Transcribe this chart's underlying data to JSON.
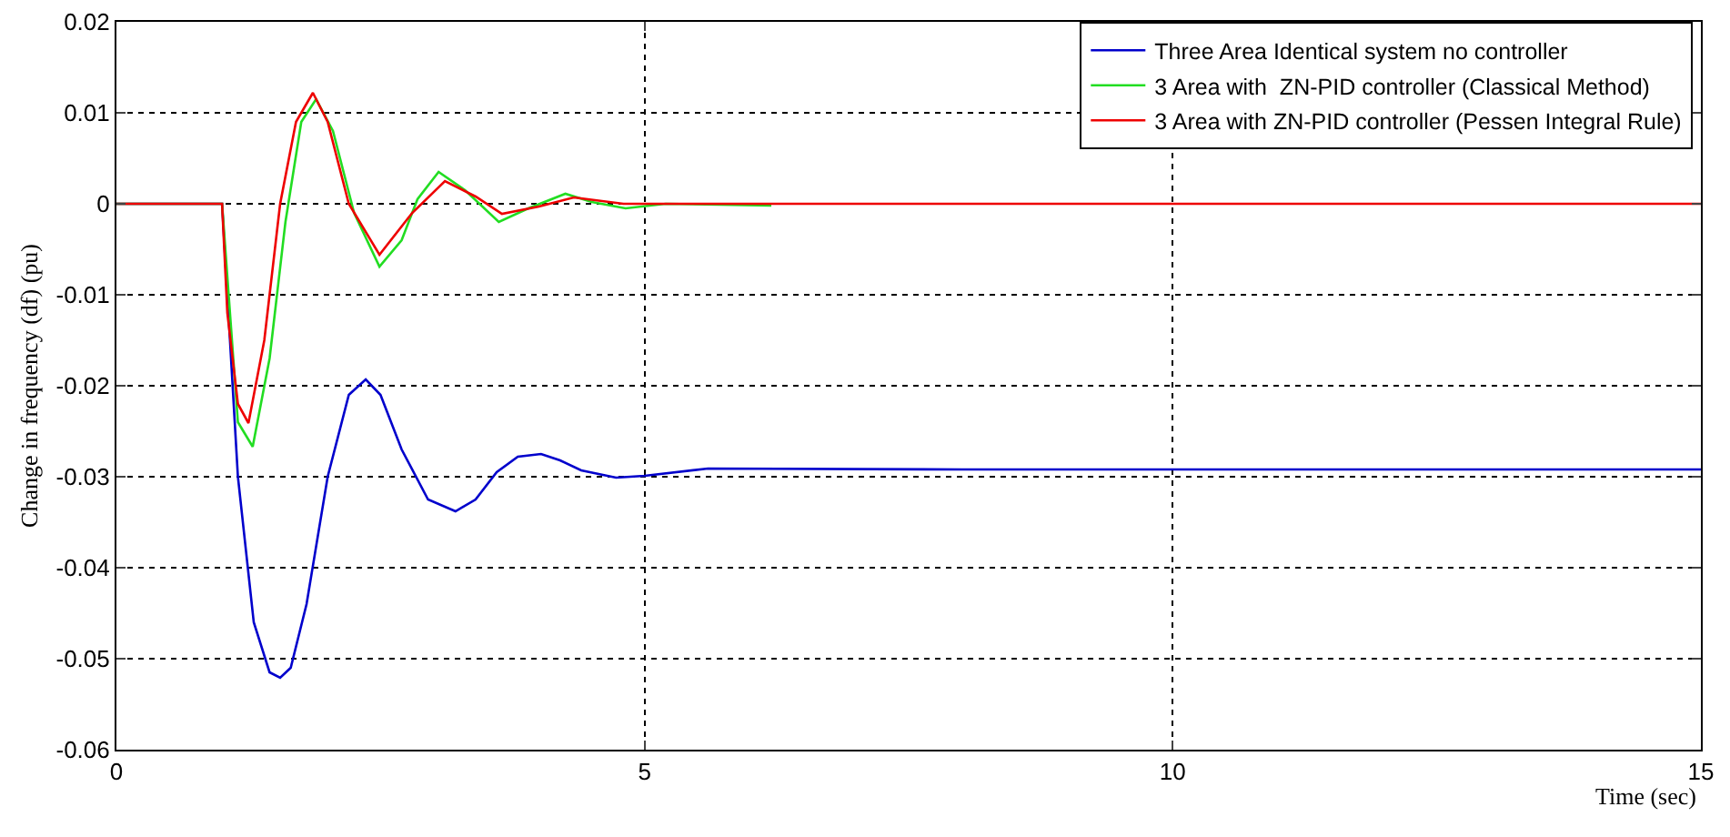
{
  "chart_data": {
    "type": "line",
    "xlabel": "Time (sec)",
    "ylabel": "Change in frequency (df) (pu)",
    "xlim": [
      0,
      15
    ],
    "xticks": [
      0,
      5,
      10,
      15
    ],
    "ylim": [
      -0.06,
      0.02
    ],
    "yticks": [
      -0.06,
      -0.05,
      -0.04,
      -0.03,
      -0.02,
      -0.01,
      0,
      0.01,
      0.02
    ],
    "grid": true,
    "legend": "top right",
    "line_style": "solid",
    "series": [
      {
        "name": "Three Area Identical system no controller",
        "color": "#0000cc",
        "x": [
          0,
          1,
          1.15,
          1.3,
          1.45,
          1.55,
          1.65,
          1.8,
          2.0,
          2.2,
          2.36,
          2.5,
          2.7,
          2.95,
          3.21,
          3.4,
          3.6,
          3.8,
          4.02,
          4.2,
          4.4,
          4.73,
          5.0,
          5.6,
          8,
          15
        ],
        "values": [
          0,
          0,
          -0.03,
          -0.046,
          -0.0515,
          -0.0521,
          -0.051,
          -0.044,
          -0.03,
          -0.021,
          -0.0193,
          -0.021,
          -0.027,
          -0.0325,
          -0.0338,
          -0.0325,
          -0.0295,
          -0.0278,
          -0.0275,
          -0.0282,
          -0.0293,
          -0.0301,
          -0.0299,
          -0.0291,
          -0.0292,
          -0.0292
        ]
      },
      {
        "name": "3 Area with  ZN-PID controller (Classical Method)",
        "color": "#22dd22",
        "x": [
          0,
          1,
          1.15,
          1.29,
          1.45,
          1.6,
          1.75,
          1.89,
          2.05,
          2.25,
          2.49,
          2.7,
          2.85,
          3.05,
          3.3,
          3.62,
          3.9,
          4.25,
          4.5,
          4.82,
          5.2,
          6.2
        ],
        "values": [
          0,
          0,
          -0.024,
          -0.0267,
          -0.017,
          -0.002,
          0.009,
          0.0115,
          0.008,
          -0.001,
          -0.0069,
          -0.004,
          0.0005,
          0.0035,
          0.0015,
          -0.002,
          -0.0005,
          0.0011,
          0.0002,
          -0.0005,
          0,
          -0.0002
        ]
      },
      {
        "name": "3 Area with ZN-PID controller (Pessen Integral Rule)",
        "color": "#ee0000",
        "x": [
          0,
          1,
          1.05,
          1.15,
          1.25,
          1.4,
          1.55,
          1.7,
          1.86,
          2.0,
          2.2,
          2.49,
          2.8,
          3.11,
          3.4,
          3.65,
          4.0,
          4.33,
          4.8,
          15
        ],
        "values": [
          0,
          0,
          -0.012,
          -0.022,
          -0.0241,
          -0.015,
          0,
          0.009,
          0.0122,
          0.009,
          0,
          -0.0056,
          -0.001,
          0.0025,
          0.0008,
          -0.0011,
          -0.0003,
          0.0007,
          0,
          0
        ]
      }
    ]
  }
}
